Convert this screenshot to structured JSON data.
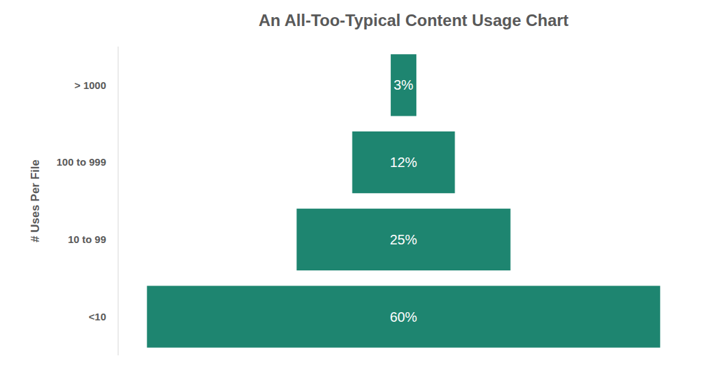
{
  "chart_data": {
    "type": "funnel",
    "title": "An All-Too-Typical Content Usage Chart",
    "y_label": "# Uses Per File",
    "categories": [
      "> 1000",
      "100 to 999",
      "10 to 99",
      "<10"
    ],
    "values": [
      3,
      12,
      25,
      60
    ],
    "value_labels": [
      "3%",
      "12%",
      "25%",
      "60%"
    ],
    "color": "#1e8570",
    "data_labels": true,
    "tick_labels": "y",
    "grid": false
  }
}
